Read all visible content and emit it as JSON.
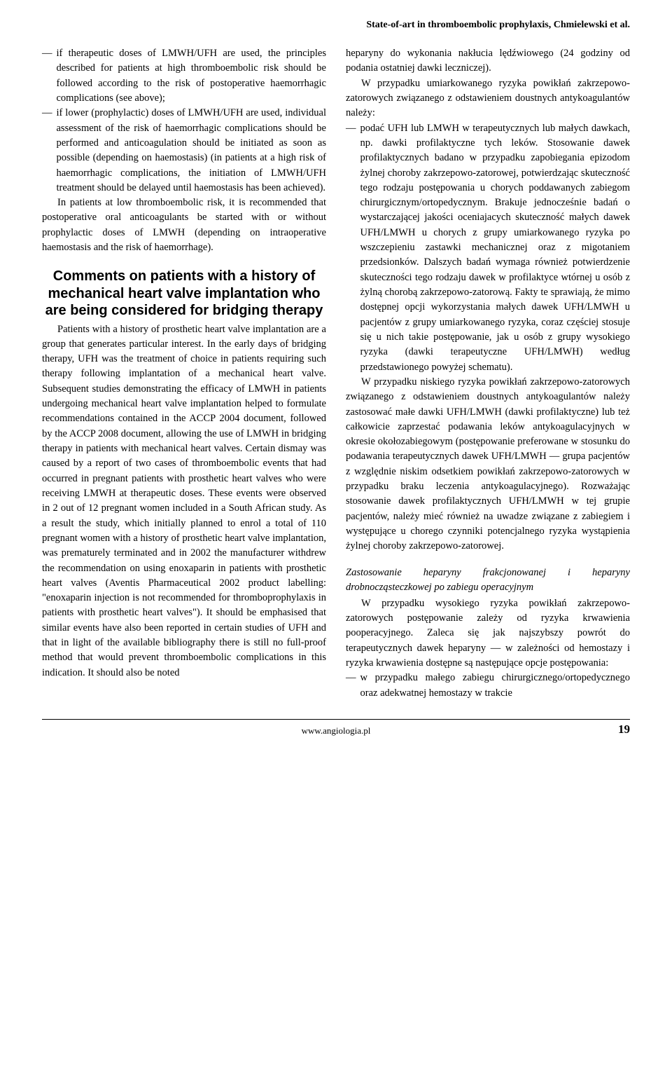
{
  "header": {
    "running_title": "State-of-art in thromboembolic prophylaxis, Chmielewski et al."
  },
  "left_column": {
    "bullet1": "if therapeutic doses of LMWH/UFH are used, the principles described for patients at high thromboembolic risk should be followed according to the risk of postoperative haemorrhagic complications (see above);",
    "bullet2": "if lower (prophylactic) doses of LMWH/UFH are used, individual assessment of the risk of haemorrhagic complications should be performed and anticoagulation should be initiated as soon as possible (depending on haemostasis) (in patients at a high risk of haemorrhagic complications, the initiation of LMWH/UFH treatment should be delayed until haemostasis has been achieved).",
    "para1": "In patients at low thromboembolic risk, it is recommended that postoperative oral anticoagulants be started with or without prophylactic doses of LMWH (depending on intraoperative haemostasis and the risk of haemorrhage).",
    "heading": "Comments on patients with a history of mechanical heart valve implantation who are being considered for bridging therapy",
    "para2": "Patients with a history of prosthetic heart valve implantation are a group that generates particular interest. In the early days of bridging therapy, UFH was the treatment of choice in patients requiring such therapy following implantation of a mechanical heart valve. Subsequent studies demonstrating the efficacy of LMWH in patients undergoing mechanical heart valve implantation helped to formulate recommendations contained in the ACCP 2004 document, followed by the ACCP 2008 document, allowing the use of LMWH in bridging therapy in patients with mechanical heart valves. Certain dismay was caused by a report of two cases of thromboembolic events that had occurred in pregnant patients with prosthetic heart valves who were receiving LMWH at therapeutic doses. These events were observed in 2 out of 12 pregnant women included in a South African study. As a result the study, which initially planned to enrol a total of 110 pregnant women with a history of prosthetic heart valve implantation, was prematurely terminated and in 2002 the manufacturer withdrew the recommendation on using enoxaparin in patients with prosthetic heart valves (Aventis Pharmaceutical 2002 product labelling: \"enoxaparin injection is not recommended for thromboprophylaxis in patients with prosthetic heart valves\"). It should be emphasised that similar events have also been reported in certain studies of UFH and that in light of the available bibliography there is still no full-proof method that would prevent thromboembolic complications in this indication. It should also be noted"
  },
  "right_column": {
    "para1": "heparyny do wykonania nakłucia lędźwiowego (24 godziny od podania ostatniej dawki leczniczej).",
    "para2": "W przypadku umiarkowanego ryzyka powikłań zakrzepowo-zatorowych związanego z odstawieniem doustnych antykoagulantów należy:",
    "bullet1": "podać UFH lub LMWH w terapeutycznych lub małych dawkach, np. dawki profilaktyczne tych leków. Stosowanie dawek profilaktycznych badano w przypadku zapobiegania epizodom żylnej choroby zakrzepowo-zatorowej, potwierdzając skuteczność tego rodzaju postępowania u chorych poddawanych zabiegom chirurgicznym/ortopedycznym. Brakuje jednocześnie badań o wystarczającej jakości oceniajacych skuteczność małych dawek UFH/LMWH u chorych z grupy umiarkowanego ryzyka po wszczepieniu zastawki mechanicznej oraz z migotaniem przedsionków. Dalszych badań wymaga również potwierdzenie skuteczności tego rodzaju dawek w profilaktyce wtórnej u osób z żylną chorobą zakrzepowo-zatorową. Fakty te sprawiają, że mimo dostępnej opcji wykorzystania małych dawek UFH/LMWH u pacjentów z grupy umiarkowanego ryzyka, coraz częściej stosuje się u nich takie postępowanie, jak u osób z grupy wysokiego ryzyka (dawki terapeutyczne UFH/LMWH) według przedstawionego powyżej schematu).",
    "para3": "W przypadku niskiego ryzyka powikłań zakrzepowo-zatorowych związanego z odstawieniem doustnych antykoagulantów należy zastosować małe dawki UFH/LMWH (dawki profilaktyczne) lub też całkowicie zaprzestać podawania leków antykoagulacyjnych w okresie okołozabiegowym (postępowanie preferowane w stosunku do podawania terapeutycznych dawek UFH/LMWH — grupa pacjentów z względnie niskim odsetkiem powikłań zakrzepowo-zatorowych w przypadku braku leczenia antykoagulacyjnego). Rozważając stosowanie dawek profilaktycznych UFH/LMWH w tej grupie pacjentów, należy mieć również na uwadze związane z zabiegiem i występujące u chorego czynniki potencjalnego ryzyka wystąpienia żylnej choroby zakrzepowo-zatorowej.",
    "subhead": "Zastosowanie heparyny frakcjonowanej i heparyny drobnocząsteczkowej po zabiegu operacyjnym",
    "para4": "W przypadku wysokiego ryzyka powikłań zakrzepowo-zatorowych postępowanie zależy od ryzyka krwawienia pooperacyjnego. Zaleca się jak najszybszy powrót do terapeutycznych dawek heparyny — w zależności od hemostazy i ryzyka krwawienia dostępne są następujące opcje postępowania:",
    "bullet2": "w przypadku małego zabiegu chirurgicznego/ortopedycznego oraz adekwatnej hemostazy w trakcie"
  },
  "footer": {
    "site": "www.angiologia.pl",
    "page_number": "19"
  }
}
